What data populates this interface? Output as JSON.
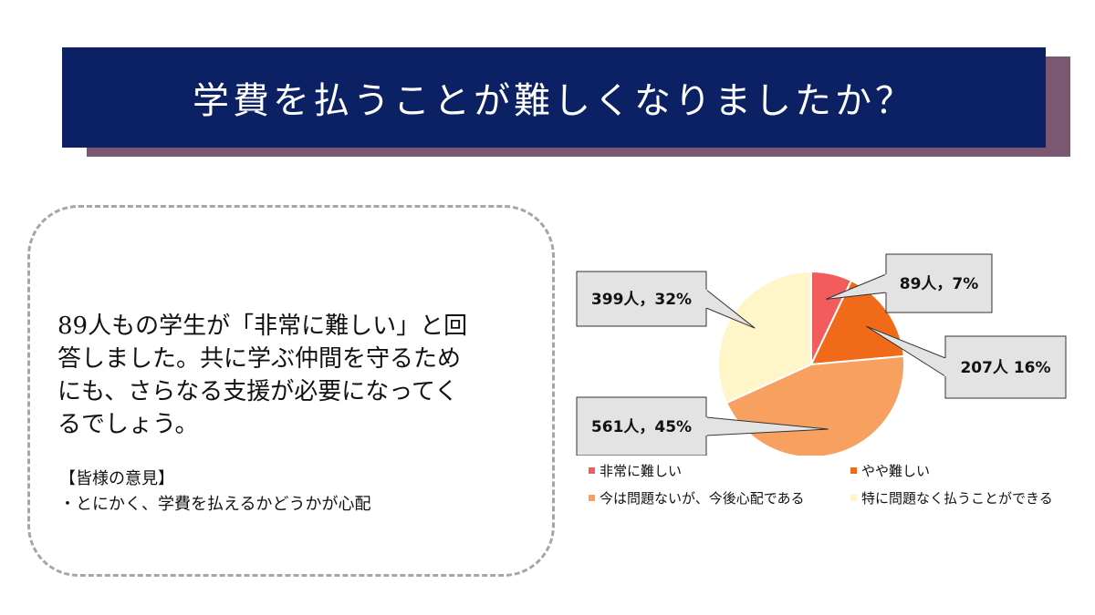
{
  "title": "学費を払うことが難しくなりましたか？",
  "callout": {
    "main_lines": [
      "89人もの学生が「非常に難しい」と回",
      "答しました。共に学ぶ仲間を守るため",
      "にも、さらなる支援が必要になってく",
      "るでしょう。"
    ],
    "opinion_heading": "【皆様の意見】",
    "opinion_bullet": "・とにかく、学費を払えるかどうかが心配"
  },
  "chart_data": {
    "type": "pie",
    "title": "",
    "categories": [
      "非常に難しい",
      "やや難しい",
      "今は問題ないが、今後心配である",
      "特に問題なく払うことができる"
    ],
    "values": [
      89,
      207,
      561,
      399
    ],
    "percents": [
      7,
      16,
      45,
      32
    ],
    "labels": [
      "89人，7%",
      "207人 16%",
      "561人，45%",
      "399人，32%"
    ],
    "colors": [
      "#f25c5c",
      "#f06a1a",
      "#f7a060",
      "#fef6c8"
    ],
    "legend_position": "bottom"
  }
}
